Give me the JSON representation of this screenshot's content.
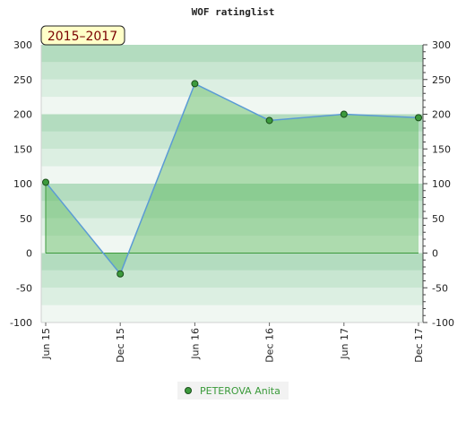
{
  "chart_data": {
    "type": "area",
    "title": "WOF ratinglist",
    "period_label": "2015–2017",
    "categories": [
      "Jun 15",
      "Dec 15",
      "Jun 16",
      "Dec 16",
      "Jun 17",
      "Dec 17"
    ],
    "series": [
      {
        "name": "PETEROVA Anita",
        "values": [
          102,
          -30,
          244,
          191,
          200,
          195
        ]
      }
    ],
    "ylim": [
      -100,
      300
    ],
    "y_ticks": [
      -100,
      -50,
      0,
      50,
      100,
      150,
      200,
      250,
      300
    ],
    "y_tick_labels": [
      "-100",
      "-50",
      "0",
      "50",
      "100",
      "150",
      "200",
      "250",
      "300"
    ],
    "grid": true,
    "legend_position": "bottom-center",
    "colors": {
      "line": "#5b9bd5",
      "fill": "#5cb85c",
      "marker": "#3c9a3c",
      "band_dark": "#b3dcbf",
      "band_light": "#d7ecdd",
      "period_box": "#ffffc8"
    }
  }
}
